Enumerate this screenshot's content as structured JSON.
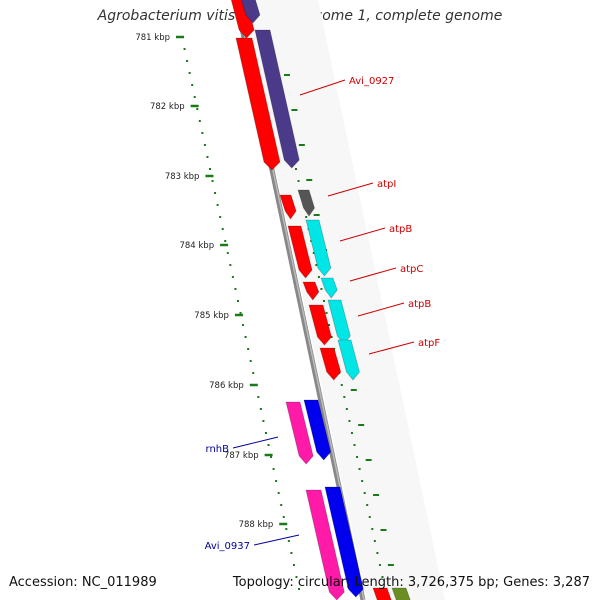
{
  "title": "Agrobacterium vitis S4 chromosome 1, complete genome",
  "accession": "Accession: NC_011989",
  "summary": "Topology: circular; Length: 3,726,375 bp; Genes: 3,287",
  "ticks": [
    {
      "label": "781 kbp",
      "kbp": 781
    },
    {
      "label": "782 kbp",
      "kbp": 782
    },
    {
      "label": "783 kbp",
      "kbp": 783
    },
    {
      "label": "784 kbp",
      "kbp": 784
    },
    {
      "label": "785 kbp",
      "kbp": 785
    },
    {
      "label": "786 kbp",
      "kbp": 786
    },
    {
      "label": "787 kbp",
      "kbp": 787
    },
    {
      "label": "788 kbp",
      "kbp": 788
    }
  ],
  "gene_labels": [
    {
      "name": "Avi_0927",
      "color": "#cc0000",
      "side": "right"
    },
    {
      "name": "atpI",
      "color": "#cc0000",
      "side": "right"
    },
    {
      "name": "atpB",
      "color": "#cc0000",
      "side": "right"
    },
    {
      "name": "atpC",
      "color": "#cc0000",
      "side": "right"
    },
    {
      "name": "atpB",
      "color": "#cc0000",
      "side": "right"
    },
    {
      "name": "atpF",
      "color": "#cc0000",
      "side": "right"
    },
    {
      "name": "rnhB",
      "color": "#000099",
      "side": "left"
    },
    {
      "name": "Avi_0937",
      "color": "#000099",
      "side": "left"
    }
  ],
  "colors": {
    "cds": "#ff0000",
    "avi0927": "#4b3a8a",
    "atpI": "#555555",
    "atp": "#00e6e6",
    "rnh_magenta": "#ff1aa8",
    "rnh_blue": "#0000ee",
    "backbone": "#888888",
    "tick": "#1a7a1a"
  }
}
